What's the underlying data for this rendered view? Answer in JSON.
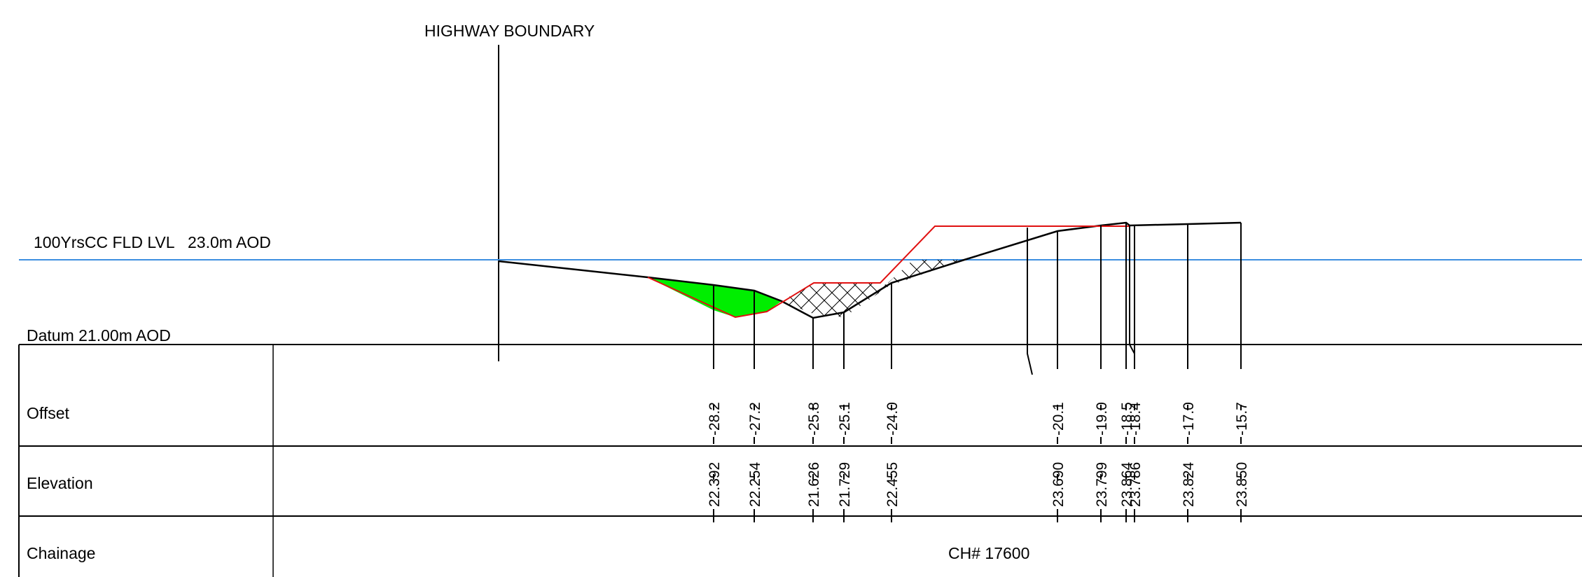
{
  "highway_boundary_label": "HIGHWAY BOUNDARY",
  "flood_level": {
    "name": "100YrsCC FLD LVL",
    "value": "23.0m AOD",
    "color": "#3d8fe0"
  },
  "datum_label": "Datum 21.00m AOD",
  "table": {
    "rows": [
      {
        "label": "Offset"
      },
      {
        "label": "Elevation"
      },
      {
        "label": "Chainage"
      }
    ],
    "chainage_value": "CH# 17600"
  },
  "section_points": [
    {
      "offset": "-28.2",
      "elevation": "22.392"
    },
    {
      "offset": "-27.2",
      "elevation": "22.254"
    },
    {
      "offset": "-25.8",
      "elevation": "21.626"
    },
    {
      "offset": "-25.1",
      "elevation": "21.729"
    },
    {
      "offset": "-24.0",
      "elevation": "22.455"
    },
    {
      "offset": "-20.1",
      "elevation": "23.690"
    },
    {
      "offset": "-19.0",
      "elevation": "23.799"
    },
    {
      "offset": "-18.5",
      "elevation": "23.864"
    },
    {
      "offset": "-18.4",
      "elevation": "23.786"
    },
    {
      "offset": "-17.0",
      "elevation": "23.824"
    },
    {
      "offset": "-15.7",
      "elevation": "23.850"
    }
  ],
  "colors": {
    "existing_ground": "#000000",
    "proposed_profile": "#e01010",
    "cut_fill": "#00ee00",
    "hatch": "#000000"
  }
}
